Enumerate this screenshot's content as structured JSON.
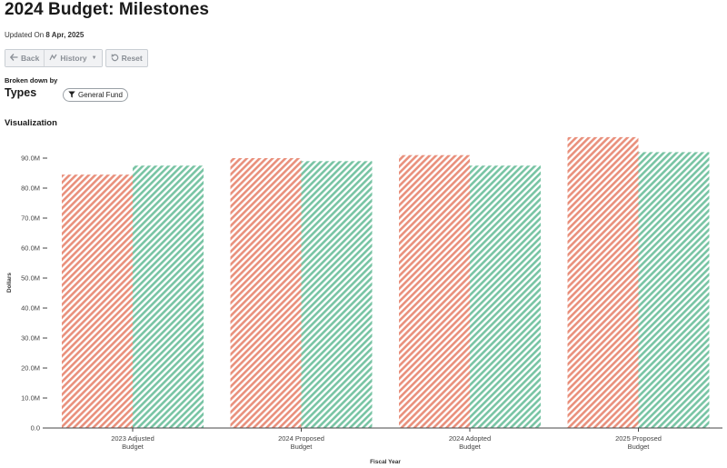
{
  "header": {
    "title": "2024 Budget: Milestones",
    "updated_prefix": "Updated On",
    "updated_date": "8 Apr, 2025"
  },
  "toolbar": {
    "back_label": "Back",
    "history_label": "History",
    "reset_label": "Reset"
  },
  "breakdown": {
    "label": "Broken down by",
    "value": "Types",
    "filter_label": "General Fund"
  },
  "visualization_label": "Visualization",
  "colors": {
    "series_a": "#e9907c",
    "series_b": "#78c4a4"
  },
  "chart_data": {
    "type": "bar",
    "categories": [
      [
        "2023 Adjusted",
        "Budget"
      ],
      [
        "2024 Proposed",
        "Budget"
      ],
      [
        "2024 Adopted",
        "Budget"
      ],
      [
        "2025 Proposed",
        "Budget"
      ]
    ],
    "series": [
      {
        "values": [
          84.5,
          90.0,
          91.0,
          97.0
        ],
        "color": "#e9907c"
      },
      {
        "values": [
          87.5,
          89.0,
          87.5,
          92.0
        ],
        "color": "#78c4a4"
      }
    ],
    "yticks": [
      "0.0",
      "10.0M",
      "20.0M",
      "30.0M",
      "40.0M",
      "50.0M",
      "60.0M",
      "70.0M",
      "80.0M",
      "90.0M"
    ],
    "ylim": [
      0,
      100
    ],
    "ylabel": "Dollars",
    "xlabel": "Fiscal Year",
    "grid": false,
    "pattern": "diagonal-hatch"
  }
}
